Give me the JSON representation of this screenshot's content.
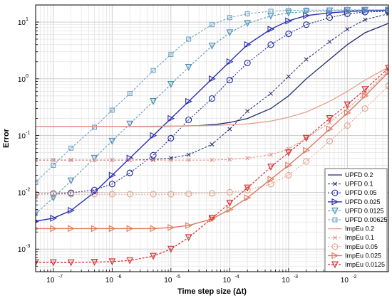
{
  "chart_data": {
    "type": "line",
    "xlabel": "Time step size (Δt)",
    "ylabel": "Error",
    "xscale": "log",
    "yscale": "log",
    "xlim": [
      5e-08,
      0.05
    ],
    "ylim": [
      0.0004,
      20
    ],
    "grid": true,
    "legend_position": "bottom-right",
    "x_tick_labels": [
      {
        "value": 1e-07,
        "label": "10",
        "exp": "-7"
      },
      {
        "value": 1e-06,
        "label": "10",
        "exp": "-6"
      },
      {
        "value": 1e-05,
        "label": "10",
        "exp": "-5"
      },
      {
        "value": 0.0001,
        "label": "10",
        "exp": "-4"
      },
      {
        "value": 0.001,
        "label": "10",
        "exp": "-3"
      },
      {
        "value": 0.01,
        "label": "10",
        "exp": "-2"
      }
    ],
    "y_tick_labels": [
      {
        "value": 0.001,
        "label": "10",
        "exp": "-3"
      },
      {
        "value": 0.01,
        "label": "10",
        "exp": "-2"
      },
      {
        "value": 0.1,
        "label": "10",
        "exp": "-1"
      },
      {
        "value": 1,
        "label": "10",
        "exp": "0"
      },
      {
        "value": 10,
        "label": "10",
        "exp": "1"
      }
    ],
    "series": [
      {
        "name": "UPFD 0.2",
        "color": "#1f2a6b",
        "dash": "",
        "marker": "none",
        "width": 1.3,
        "x": [
          5e-08,
          1e-07,
          5e-07,
          1e-06,
          5e-06,
          1e-05,
          3e-05,
          6e-05,
          0.0001,
          0.0002,
          0.0005,
          0.001,
          0.002,
          0.005,
          0.01,
          0.02,
          0.05
        ],
        "y": [
          0.145,
          0.145,
          0.145,
          0.145,
          0.145,
          0.146,
          0.15,
          0.158,
          0.17,
          0.2,
          0.3,
          0.5,
          1.0,
          2.2,
          4.0,
          6.5,
          9.5
        ]
      },
      {
        "name": "UPFD 0.1",
        "color": "#1f2a6b",
        "dash": "3,2",
        "marker": "x",
        "width": 1.0,
        "x": [
          5e-08,
          1e-07,
          2e-07,
          5e-07,
          1e-06,
          2e-06,
          5e-06,
          1e-05,
          2e-05,
          5e-05,
          0.0001,
          0.0002,
          0.0005,
          0.001,
          0.002,
          0.005,
          0.01,
          0.02,
          0.05
        ],
        "y": [
          0.037,
          0.037,
          0.037,
          0.037,
          0.037,
          0.037,
          0.038,
          0.04,
          0.046,
          0.07,
          0.13,
          0.27,
          0.55,
          1.1,
          2.2,
          4.5,
          7.5,
          11.0,
          14.0
        ]
      },
      {
        "name": "UPFD 0.05",
        "color": "#1f2a9b",
        "dash": "2,2",
        "marker": "circle",
        "width": 1.1,
        "x": [
          5e-08,
          1e-07,
          2e-07,
          5e-07,
          1e-06,
          2e-06,
          5e-06,
          1e-05,
          2e-05,
          5e-05,
          0.0001,
          0.0002,
          0.0005,
          0.001,
          0.002,
          0.005,
          0.01,
          0.02,
          0.05
        ],
        "y": [
          0.0093,
          0.0095,
          0.0098,
          0.011,
          0.014,
          0.022,
          0.045,
          0.09,
          0.19,
          0.45,
          0.95,
          1.9,
          4.0,
          6.2,
          9.0,
          12.0,
          14.0,
          15.0,
          15.5
        ]
      },
      {
        "name": "UPFD 0.025",
        "color": "#2a2fb3",
        "dash": "",
        "marker": "triangle-right",
        "width": 1.4,
        "x": [
          5e-08,
          1e-07,
          2e-07,
          5e-07,
          1e-06,
          2e-06,
          5e-06,
          1e-05,
          2e-05,
          5e-05,
          0.0001,
          0.0002,
          0.0005,
          0.001,
          0.002,
          0.005,
          0.01,
          0.02,
          0.05
        ],
        "y": [
          0.0031,
          0.0035,
          0.0048,
          0.01,
          0.02,
          0.04,
          0.1,
          0.2,
          0.4,
          1.0,
          2.0,
          4.0,
          7.5,
          10.5,
          13.0,
          14.5,
          15.3,
          15.8,
          16.0
        ]
      },
      {
        "name": "UPFD 0.0125",
        "color": "#4a8fb3",
        "dash": "3,2",
        "marker": "triangle-down",
        "width": 1.0,
        "x": [
          5e-08,
          1e-07,
          2e-07,
          5e-07,
          1e-06,
          2e-06,
          5e-06,
          1e-05,
          2e-05,
          5e-05,
          0.0001,
          0.0002,
          0.0005,
          0.001,
          0.002,
          0.005,
          0.01,
          0.02,
          0.05
        ],
        "y": [
          0.0042,
          0.008,
          0.016,
          0.04,
          0.08,
          0.16,
          0.4,
          0.8,
          1.6,
          3.8,
          6.5,
          9.5,
          12.8,
          14.5,
          15.3,
          15.8,
          16.0,
          16.2,
          16.3
        ]
      },
      {
        "name": "UPFD 0.00625",
        "color": "#6a9fc3",
        "dash": "3,2",
        "marker": "square",
        "width": 1.0,
        "x": [
          5e-08,
          1e-07,
          2e-07,
          5e-07,
          1e-06,
          2e-06,
          5e-06,
          1e-05,
          2e-05,
          5e-05,
          0.0001,
          0.0002,
          0.0005,
          0.001,
          0.002,
          0.005,
          0.01,
          0.02,
          0.05
        ],
        "y": [
          0.015,
          0.03,
          0.06,
          0.14,
          0.28,
          0.55,
          1.4,
          2.7,
          5.0,
          9.0,
          12.0,
          14.0,
          15.5,
          16.0,
          16.2,
          16.3,
          16.4,
          16.4,
          16.4
        ]
      },
      {
        "name": "ImpEu 0.2",
        "color": "#e8a088",
        "dash": "",
        "marker": "none",
        "width": 1.3,
        "x": [
          5e-08,
          1e-07,
          5e-07,
          1e-06,
          5e-06,
          1e-05,
          5e-05,
          0.0001,
          0.0002,
          0.0005,
          0.001,
          0.002,
          0.005,
          0.01,
          0.02,
          0.05
        ],
        "y": [
          0.145,
          0.145,
          0.145,
          0.145,
          0.146,
          0.147,
          0.15,
          0.155,
          0.16,
          0.18,
          0.21,
          0.26,
          0.4,
          0.6,
          0.95,
          1.6
        ]
      },
      {
        "name": "ImpEu 0.1",
        "color": "#e48a85",
        "dash": "3,2",
        "marker": "x",
        "width": 1.0,
        "x": [
          5e-08,
          1e-07,
          2e-07,
          5e-07,
          1e-06,
          2e-06,
          5e-06,
          1e-05,
          2e-05,
          5e-05,
          0.0001,
          0.0002,
          0.0005,
          0.001,
          0.002,
          0.005,
          0.01,
          0.02,
          0.05
        ],
        "y": [
          0.037,
          0.037,
          0.037,
          0.037,
          0.037,
          0.037,
          0.037,
          0.037,
          0.037,
          0.037,
          0.038,
          0.04,
          0.046,
          0.058,
          0.09,
          0.17,
          0.3,
          0.55,
          1.4
        ]
      },
      {
        "name": "ImpEu 0.05",
        "color": "#e8a088",
        "dash": "2,2",
        "marker": "circle",
        "width": 1.0,
        "x": [
          5e-08,
          1e-07,
          2e-07,
          5e-07,
          1e-06,
          2e-06,
          5e-06,
          1e-05,
          2e-05,
          5e-05,
          0.0001,
          0.0002,
          0.0005,
          0.001,
          0.002,
          0.005,
          0.01,
          0.02,
          0.05
        ],
        "y": [
          0.0093,
          0.0093,
          0.0093,
          0.0093,
          0.0093,
          0.0093,
          0.0093,
          0.0093,
          0.0094,
          0.0096,
          0.01,
          0.011,
          0.014,
          0.02,
          0.035,
          0.08,
          0.15,
          0.3,
          0.75
        ]
      },
      {
        "name": "ImpEu 0.025",
        "color": "#e0785e",
        "dash": "",
        "marker": "triangle-right",
        "width": 1.4,
        "x": [
          5e-08,
          1e-07,
          2e-07,
          5e-07,
          1e-06,
          2e-06,
          5e-06,
          1e-05,
          2e-05,
          5e-05,
          0.0001,
          0.0002,
          0.0005,
          0.001,
          0.002,
          0.005,
          0.01,
          0.02,
          0.05
        ],
        "y": [
          0.0023,
          0.0023,
          0.0023,
          0.0023,
          0.0023,
          0.0023,
          0.0023,
          0.0024,
          0.0026,
          0.0034,
          0.005,
          0.008,
          0.017,
          0.03,
          0.055,
          0.13,
          0.25,
          0.5,
          1.3
        ]
      },
      {
        "name": "ImpEu 0.0125",
        "color": "#d32f2f",
        "dash": "3,2",
        "marker": "triangle-down",
        "width": 1.2,
        "x": [
          5e-08,
          1e-07,
          2e-07,
          5e-07,
          1e-06,
          2e-06,
          5e-06,
          1e-05,
          2e-05,
          5e-05,
          0.0001,
          0.0002,
          0.0005,
          0.001,
          0.002,
          0.005,
          0.01,
          0.02,
          0.05
        ],
        "y": [
          0.00058,
          0.00058,
          0.00058,
          0.00059,
          0.0006,
          0.00063,
          0.00075,
          0.001,
          0.0016,
          0.0035,
          0.0065,
          0.012,
          0.028,
          0.05,
          0.09,
          0.2,
          0.35,
          0.65,
          1.55
        ]
      }
    ]
  }
}
